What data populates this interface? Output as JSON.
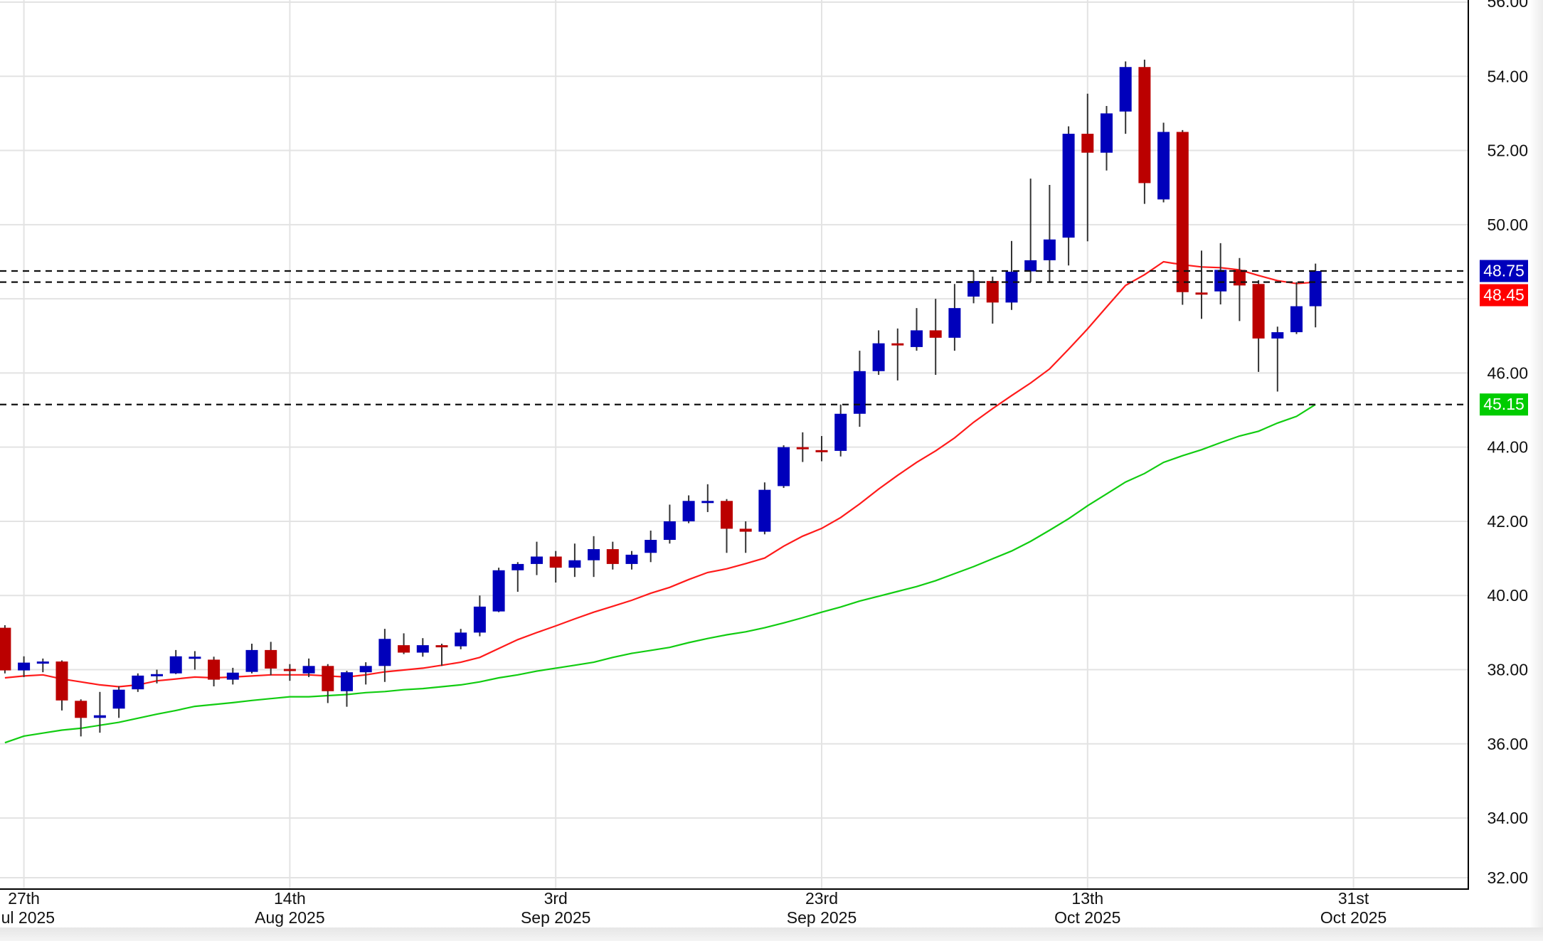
{
  "chart_data": {
    "type": "candlestick",
    "title": "",
    "ylim": [
      32,
      56
    ],
    "colors": {
      "up": "#0000bb",
      "down": "#bb0000",
      "wick": "#333333",
      "ma_fast": "#ff1a1a",
      "ma_slow": "#11cc11",
      "grid": "#e3e3e3"
    },
    "y_ticks": [
      {
        "value": 56,
        "label": "56.00"
      },
      {
        "value": 54,
        "label": "54.00"
      },
      {
        "value": 52,
        "label": "52.00"
      },
      {
        "value": 50,
        "label": "50.00"
      },
      {
        "value": 46,
        "label": "46.00"
      },
      {
        "value": 44,
        "label": "44.00"
      },
      {
        "value": 42,
        "label": "42.00"
      },
      {
        "value": 40,
        "label": "40.00"
      },
      {
        "value": 38,
        "label": "38.00"
      },
      {
        "value": 36,
        "label": "36.00"
      },
      {
        "value": 34,
        "label": "34.00"
      },
      {
        "value": 32,
        "label": "32.00"
      }
    ],
    "grid_values": [
      56,
      54,
      52,
      50,
      48,
      46,
      44,
      42,
      40,
      38,
      36,
      34,
      32
    ],
    "x_ticks": [
      {
        "index": 1,
        "day": "27th",
        "month": "Jul 2025"
      },
      {
        "index": 15,
        "day": "14th",
        "month": "Aug 2025"
      },
      {
        "index": 29,
        "day": "3rd",
        "month": "Sep 2025"
      },
      {
        "index": 43,
        "day": "23rd",
        "month": "Sep 2025"
      },
      {
        "index": 57,
        "day": "13th",
        "month": "Oct 2025"
      },
      {
        "index": 71,
        "day": "31st",
        "month": "Oct 2025"
      }
    ],
    "candles": [
      [
        39.13,
        37.98,
        39.2,
        37.9
      ],
      [
        37.98,
        38.19,
        38.36,
        37.8
      ],
      [
        38.2,
        38.22,
        38.3,
        37.93
      ],
      [
        38.22,
        37.17,
        38.25,
        36.9
      ],
      [
        37.16,
        36.7,
        37.2,
        36.2
      ],
      [
        36.7,
        36.77,
        37.4,
        36.3
      ],
      [
        36.95,
        37.46,
        37.55,
        36.7
      ],
      [
        37.47,
        37.84,
        37.9,
        37.4
      ],
      [
        37.86,
        37.88,
        38.0,
        37.63
      ],
      [
        37.9,
        38.36,
        38.53,
        37.88
      ],
      [
        38.33,
        38.35,
        38.5,
        38.0
      ],
      [
        38.27,
        37.73,
        38.35,
        37.55
      ],
      [
        37.73,
        37.92,
        38.05,
        37.6
      ],
      [
        37.94,
        38.53,
        38.7,
        37.9
      ],
      [
        38.53,
        38.03,
        38.75,
        37.85
      ],
      [
        38.02,
        37.98,
        38.15,
        37.7
      ],
      [
        37.9,
        38.1,
        38.3,
        37.8
      ],
      [
        38.1,
        37.42,
        38.15,
        37.1
      ],
      [
        37.42,
        37.93,
        37.97,
        37.0
      ],
      [
        37.93,
        38.1,
        38.2,
        37.6
      ],
      [
        38.1,
        38.83,
        39.1,
        37.67
      ],
      [
        38.66,
        38.46,
        38.98,
        38.42
      ],
      [
        38.46,
        38.66,
        38.85,
        38.35
      ],
      [
        38.66,
        38.62,
        38.7,
        38.1
      ],
      [
        38.63,
        39.0,
        39.1,
        38.55
      ],
      [
        39.0,
        39.7,
        40.0,
        38.9
      ],
      [
        39.57,
        40.68,
        40.75,
        39.55
      ],
      [
        40.68,
        40.85,
        40.9,
        40.1
      ],
      [
        40.85,
        41.05,
        41.45,
        40.55
      ],
      [
        41.05,
        40.75,
        41.2,
        40.35
      ],
      [
        40.75,
        40.95,
        41.4,
        40.5
      ],
      [
        40.95,
        41.25,
        41.6,
        40.5
      ],
      [
        41.25,
        40.85,
        41.45,
        40.7
      ],
      [
        40.85,
        41.1,
        41.2,
        40.7
      ],
      [
        41.15,
        41.5,
        41.75,
        40.9
      ],
      [
        41.5,
        42.0,
        42.45,
        41.4
      ],
      [
        42.0,
        42.55,
        42.7,
        41.95
      ],
      [
        42.5,
        42.55,
        43.0,
        42.25
      ],
      [
        42.55,
        41.8,
        42.6,
        41.15
      ],
      [
        41.8,
        41.72,
        42.0,
        41.15
      ],
      [
        41.72,
        42.85,
        43.05,
        41.65
      ],
      [
        42.95,
        44.0,
        44.05,
        42.9
      ],
      [
        44.0,
        43.95,
        44.4,
        43.6
      ],
      [
        43.92,
        43.88,
        44.3,
        43.62
      ],
      [
        43.9,
        44.9,
        45.15,
        43.75
      ],
      [
        44.9,
        46.05,
        46.6,
        44.55
      ],
      [
        46.05,
        46.8,
        47.15,
        45.95
      ],
      [
        46.8,
        46.75,
        47.2,
        45.8
      ],
      [
        46.7,
        47.15,
        47.75,
        46.6
      ],
      [
        47.15,
        46.95,
        48.0,
        45.95
      ],
      [
        46.95,
        47.75,
        48.4,
        46.6
      ],
      [
        48.06,
        48.48,
        48.75,
        47.88
      ],
      [
        48.48,
        47.9,
        48.6,
        47.33
      ],
      [
        47.9,
        48.73,
        49.56,
        47.7
      ],
      [
        48.74,
        49.04,
        51.24,
        48.45
      ],
      [
        49.04,
        49.6,
        51.07,
        48.45
      ],
      [
        49.65,
        52.45,
        52.65,
        48.9
      ],
      [
        52.45,
        51.94,
        53.53,
        49.55
      ],
      [
        51.94,
        53.0,
        53.2,
        51.46
      ],
      [
        53.05,
        54.25,
        54.4,
        52.45
      ],
      [
        54.25,
        51.12,
        54.45,
        50.56
      ],
      [
        50.68,
        52.5,
        52.75,
        50.6
      ],
      [
        52.5,
        48.18,
        52.55,
        47.84
      ],
      [
        48.17,
        48.15,
        49.3,
        47.46
      ],
      [
        48.2,
        48.78,
        49.5,
        47.85
      ],
      [
        48.78,
        48.36,
        49.1,
        47.4
      ],
      [
        48.4,
        46.93,
        48.5,
        46.03
      ],
      [
        46.93,
        47.1,
        47.25,
        45.5
      ],
      [
        47.1,
        47.8,
        48.45,
        47.05
      ],
      [
        47.8,
        48.75,
        48.95,
        47.23
      ]
    ],
    "ma_fast": [
      37.78,
      37.83,
      37.86,
      37.75,
      37.67,
      37.59,
      37.54,
      37.59,
      37.7,
      37.75,
      37.8,
      37.78,
      37.8,
      37.83,
      37.86,
      37.86,
      37.86,
      37.83,
      37.8,
      37.86,
      37.94,
      37.99,
      38.04,
      38.12,
      38.2,
      38.33,
      38.57,
      38.81,
      39.0,
      39.18,
      39.37,
      39.55,
      39.71,
      39.87,
      40.06,
      40.22,
      40.43,
      40.62,
      40.72,
      40.86,
      41.01,
      41.33,
      41.6,
      41.81,
      42.1,
      42.47,
      42.87,
      43.24,
      43.59,
      43.9,
      44.25,
      44.67,
      45.04,
      45.39,
      45.73,
      46.11,
      46.64,
      47.19,
      47.78,
      48.36,
      48.65,
      49.0,
      48.92,
      48.86,
      48.84,
      48.78,
      48.63,
      48.49,
      48.41,
      48.45
    ],
    "ma_slow": [
      36.03,
      36.21,
      36.29,
      36.37,
      36.42,
      36.5,
      36.58,
      36.69,
      36.8,
      36.9,
      37.01,
      37.06,
      37.11,
      37.17,
      37.22,
      37.27,
      37.27,
      37.3,
      37.33,
      37.38,
      37.41,
      37.46,
      37.49,
      37.54,
      37.59,
      37.67,
      37.78,
      37.86,
      37.96,
      38.04,
      38.12,
      38.2,
      38.33,
      38.44,
      38.52,
      38.6,
      38.73,
      38.84,
      38.94,
      39.02,
      39.13,
      39.26,
      39.4,
      39.55,
      39.69,
      39.85,
      39.98,
      40.11,
      40.24,
      40.4,
      40.59,
      40.78,
      40.99,
      41.2,
      41.46,
      41.76,
      42.07,
      42.42,
      42.74,
      43.06,
      43.29,
      43.59,
      43.77,
      43.93,
      44.12,
      44.3,
      44.43,
      44.65,
      44.83,
      45.15
    ],
    "price_tags": [
      {
        "value": 48.75,
        "label": "48.75",
        "color": "#0000bb",
        "meaning": "last close"
      },
      {
        "value": 48.45,
        "label": "48.45",
        "color": "#ff0000",
        "meaning": "fast MA"
      },
      {
        "value": 45.15,
        "label": "45.15",
        "color": "#00cc00",
        "meaning": "slow MA"
      }
    ]
  }
}
